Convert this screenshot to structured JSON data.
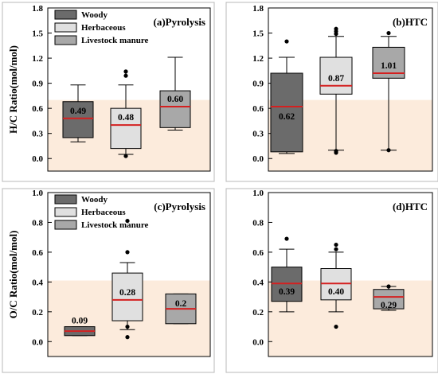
{
  "chart_data": [
    {
      "type": "box",
      "title": "(a)Pyrolysis",
      "ylabel": "H/C Ratio(mol/mol)",
      "ylim": [
        -0.15,
        1.8
      ],
      "yticks": [
        "0.0",
        "0.3",
        "0.6",
        "0.9",
        "1.2",
        "1.5",
        "1.8"
      ],
      "shaded_below": 0.7,
      "legend": [
        "Woody",
        "Herbaceous",
        "Livestock manure"
      ],
      "boxes": [
        {
          "category": "Woody",
          "whisker_low": 0.2,
          "q1": 0.25,
          "median": 0.48,
          "q3": 0.68,
          "whisker_high": 0.88,
          "outliers": [],
          "label": "0.49"
        },
        {
          "category": "Herbaceous",
          "whisker_low": 0.05,
          "q1": 0.12,
          "median": 0.4,
          "q3": 0.6,
          "whisker_high": 0.88,
          "outliers": [
            0.03,
            0.99,
            1.04
          ],
          "label": "0.48"
        },
        {
          "category": "Livestock manure",
          "whisker_low": 0.34,
          "q1": 0.37,
          "median": 0.62,
          "q3": 0.81,
          "whisker_high": 1.21,
          "outliers": [],
          "label": "0.60"
        }
      ]
    },
    {
      "type": "box",
      "title": "(b)HTC",
      "ylabel": "",
      "ylim": [
        -0.15,
        1.8
      ],
      "yticks": [
        "0.0",
        "0.3",
        "0.6",
        "0.9",
        "1.2",
        "1.5",
        "1.8"
      ],
      "shaded_below": 0.7,
      "legend": [],
      "boxes": [
        {
          "category": "Woody",
          "whisker_low": 0.06,
          "q1": 0.08,
          "median": 0.62,
          "q3": 1.02,
          "whisker_high": 1.21,
          "outliers": [
            1.4
          ],
          "label": "0.62"
        },
        {
          "category": "Herbaceous",
          "whisker_low": 0.1,
          "q1": 0.77,
          "median": 0.87,
          "q3": 1.21,
          "whisker_high": 1.46,
          "outliers": [
            0.07,
            0.09,
            1.49,
            1.52,
            1.55
          ],
          "label": "0.87"
        },
        {
          "category": "Livestock manure",
          "whisker_low": 0.1,
          "q1": 0.96,
          "median": 1.02,
          "q3": 1.33,
          "whisker_high": 1.46,
          "outliers": [
            0.1,
            1.5
          ],
          "label": "1.01"
        }
      ]
    },
    {
      "type": "box",
      "title": "(c)Pyrolysis",
      "ylabel": "O/C Ratio(mol/mol)",
      "ylim": [
        -0.1,
        1.0
      ],
      "yticks": [
        "0.0",
        "0.2",
        "0.4",
        "0.6",
        "0.8",
        "1.0"
      ],
      "shaded_below": 0.41,
      "legend": [
        "Woody",
        "Herbaceous",
        "Livestock manure"
      ],
      "boxes": [
        {
          "category": "Woody",
          "whisker_low": 0.04,
          "q1": 0.04,
          "median": 0.07,
          "q3": 0.1,
          "whisker_high": 0.1,
          "outliers": [],
          "label": "0.09"
        },
        {
          "category": "Herbaceous",
          "whisker_low": 0.08,
          "q1": 0.14,
          "median": 0.28,
          "q3": 0.46,
          "whisker_high": 0.53,
          "outliers": [
            0.03,
            0.1,
            0.6,
            0.81
          ],
          "label": "0.28"
        },
        {
          "category": "Livestock manure",
          "whisker_low": 0.12,
          "q1": 0.12,
          "median": 0.22,
          "q3": 0.32,
          "whisker_high": 0.32,
          "outliers": [],
          "label": "0.2"
        }
      ]
    },
    {
      "type": "box",
      "title": "(d)HTC",
      "ylabel": "",
      "ylim": [
        -0.1,
        1.0
      ],
      "yticks": [
        "0.0",
        "0.2",
        "0.4",
        "0.6",
        "0.8",
        "1.0"
      ],
      "shaded_below": 0.41,
      "legend": [],
      "boxes": [
        {
          "category": "Woody",
          "whisker_low": 0.2,
          "q1": 0.27,
          "median": 0.39,
          "q3": 0.5,
          "whisker_high": 0.62,
          "outliers": [
            0.69
          ],
          "label": "0.39"
        },
        {
          "category": "Herbaceous",
          "whisker_low": 0.2,
          "q1": 0.28,
          "median": 0.39,
          "q3": 0.49,
          "whisker_high": 0.6,
          "outliers": [
            0.1,
            0.62,
            0.65
          ],
          "label": "0.40"
        },
        {
          "category": "Livestock manure",
          "whisker_low": 0.21,
          "q1": 0.22,
          "median": 0.3,
          "q3": 0.35,
          "whisker_high": 0.37,
          "outliers": [
            0.37
          ],
          "label": "0.29"
        }
      ]
    }
  ],
  "colors": {
    "woody": "#6b6b6b",
    "herbaceous": "#e0e0e0",
    "livestock": "#a8a8a8",
    "median": "#d42020",
    "shading": "#fcebdc",
    "panel_border": "#b8b8b8"
  }
}
